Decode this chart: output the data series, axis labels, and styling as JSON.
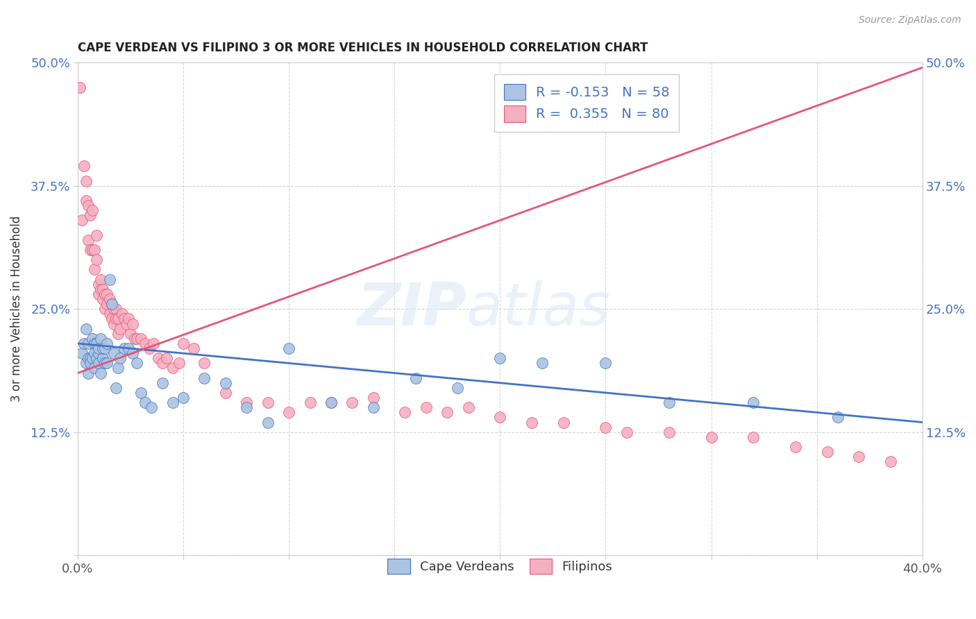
{
  "title": "CAPE VERDEAN VS FILIPINO 3 OR MORE VEHICLES IN HOUSEHOLD CORRELATION CHART",
  "source": "Source: ZipAtlas.com",
  "ylabel": "3 or more Vehicles in Household",
  "xmin": 0.0,
  "xmax": 0.4,
  "ymin": 0.0,
  "ymax": 0.5,
  "xticks": [
    0.0,
    0.05,
    0.1,
    0.15,
    0.2,
    0.25,
    0.3,
    0.35,
    0.4
  ],
  "yticks": [
    0.0,
    0.125,
    0.25,
    0.375,
    0.5
  ],
  "blue_R": -0.153,
  "blue_N": 58,
  "pink_R": 0.355,
  "pink_N": 80,
  "blue_color": "#aac4e2",
  "pink_color": "#f5b0c0",
  "blue_line_color": "#4472c4",
  "pink_line_color": "#e8537a",
  "watermark_zip": "ZIP",
  "watermark_atlas": "atlas",
  "legend_label_blue": "Cape Verdeans",
  "legend_label_pink": "Filipinos",
  "blue_scatter_x": [
    0.002,
    0.003,
    0.004,
    0.004,
    0.005,
    0.005,
    0.005,
    0.006,
    0.006,
    0.007,
    0.007,
    0.008,
    0.008,
    0.008,
    0.009,
    0.009,
    0.01,
    0.01,
    0.01,
    0.011,
    0.011,
    0.012,
    0.012,
    0.013,
    0.013,
    0.014,
    0.014,
    0.015,
    0.016,
    0.017,
    0.018,
    0.019,
    0.02,
    0.022,
    0.024,
    0.026,
    0.028,
    0.03,
    0.032,
    0.035,
    0.04,
    0.045,
    0.05,
    0.06,
    0.07,
    0.08,
    0.09,
    0.1,
    0.12,
    0.14,
    0.16,
    0.18,
    0.2,
    0.22,
    0.25,
    0.28,
    0.32,
    0.36
  ],
  "blue_scatter_y": [
    0.205,
    0.215,
    0.23,
    0.195,
    0.2,
    0.215,
    0.185,
    0.2,
    0.195,
    0.22,
    0.2,
    0.215,
    0.19,
    0.205,
    0.2,
    0.215,
    0.205,
    0.195,
    0.21,
    0.22,
    0.185,
    0.2,
    0.21,
    0.195,
    0.21,
    0.195,
    0.215,
    0.28,
    0.255,
    0.205,
    0.17,
    0.19,
    0.2,
    0.21,
    0.21,
    0.205,
    0.195,
    0.165,
    0.155,
    0.15,
    0.175,
    0.155,
    0.16,
    0.18,
    0.175,
    0.15,
    0.135,
    0.21,
    0.155,
    0.15,
    0.18,
    0.17,
    0.2,
    0.195,
    0.195,
    0.155,
    0.155,
    0.14
  ],
  "pink_scatter_x": [
    0.001,
    0.002,
    0.003,
    0.004,
    0.004,
    0.005,
    0.005,
    0.006,
    0.006,
    0.007,
    0.007,
    0.008,
    0.008,
    0.009,
    0.009,
    0.01,
    0.01,
    0.011,
    0.011,
    0.012,
    0.012,
    0.013,
    0.013,
    0.014,
    0.014,
    0.015,
    0.015,
    0.016,
    0.016,
    0.017,
    0.017,
    0.018,
    0.018,
    0.019,
    0.019,
    0.02,
    0.021,
    0.022,
    0.023,
    0.024,
    0.025,
    0.026,
    0.027,
    0.028,
    0.03,
    0.032,
    0.034,
    0.036,
    0.038,
    0.04,
    0.042,
    0.045,
    0.048,
    0.05,
    0.055,
    0.06,
    0.07,
    0.08,
    0.09,
    0.1,
    0.11,
    0.12,
    0.13,
    0.14,
    0.155,
    0.165,
    0.175,
    0.185,
    0.2,
    0.215,
    0.23,
    0.25,
    0.26,
    0.28,
    0.3,
    0.32,
    0.34,
    0.355,
    0.37,
    0.385
  ],
  "pink_scatter_y": [
    0.475,
    0.34,
    0.395,
    0.38,
    0.36,
    0.355,
    0.32,
    0.345,
    0.31,
    0.31,
    0.35,
    0.29,
    0.31,
    0.3,
    0.325,
    0.275,
    0.265,
    0.28,
    0.27,
    0.27,
    0.26,
    0.265,
    0.25,
    0.265,
    0.255,
    0.245,
    0.26,
    0.24,
    0.255,
    0.25,
    0.235,
    0.25,
    0.24,
    0.24,
    0.225,
    0.23,
    0.245,
    0.24,
    0.235,
    0.24,
    0.225,
    0.235,
    0.22,
    0.22,
    0.22,
    0.215,
    0.21,
    0.215,
    0.2,
    0.195,
    0.2,
    0.19,
    0.195,
    0.215,
    0.21,
    0.195,
    0.165,
    0.155,
    0.155,
    0.145,
    0.155,
    0.155,
    0.155,
    0.16,
    0.145,
    0.15,
    0.145,
    0.15,
    0.14,
    0.135,
    0.135,
    0.13,
    0.125,
    0.125,
    0.12,
    0.12,
    0.11,
    0.105,
    0.1,
    0.095
  ],
  "blue_trend_x": [
    0.0,
    0.4
  ],
  "blue_trend_y": [
    0.215,
    0.135
  ],
  "pink_trend_x": [
    0.0,
    0.4
  ],
  "pink_trend_y": [
    0.185,
    0.495
  ]
}
